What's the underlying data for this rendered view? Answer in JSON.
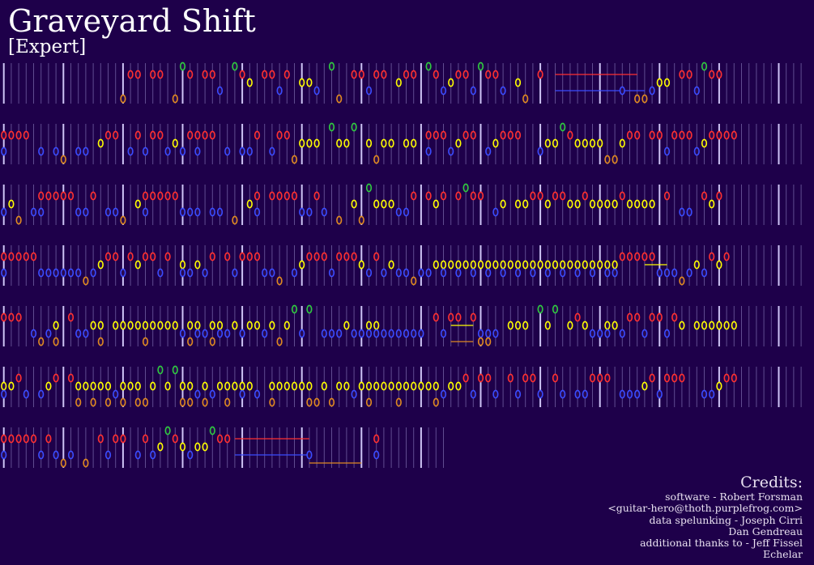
{
  "song": {
    "title": "Graveyard Shift",
    "difficulty": "[Expert]"
  },
  "credits": {
    "heading": "Credits:",
    "lines": [
      "software - Robert Forsman",
      "<guitar-hero@thoth.purplefrog.com>",
      "data spelunking - Joseph Cirri",
      "Dan Gendreau",
      "additional thanks to - Jeff Fissel",
      "Echelar"
    ]
  },
  "colors": {
    "background": "#1e004a",
    "green": "#2ecc40",
    "red": "#ff3030",
    "yellow": "#ffff00",
    "blue": "#3a4cff",
    "orange": "#e08a20",
    "beat_line": "#8c7fc0",
    "measure_line": "#d8d0ff"
  },
  "note_key": {
    "g": [
      "G"
    ],
    "r": [
      "R"
    ],
    "y": [
      "Y"
    ],
    "b": [
      "B"
    ],
    "o": [
      "O"
    ],
    "x": [
      "R",
      "B"
    ],
    "v": [
      "Y",
      "B"
    ],
    "w": [
      "Y",
      "O"
    ],
    "q": [
      "B",
      "O"
    ]
  },
  "rows": [
    {
      "notes": "................orr.rr.ogr.rrb.gry.rrbr.yyb.go.rrbrr.yrr.grbyrrbgrrb.yo.r..........b.oobyy.rrbgrr.",
      "length": 108
    },
    {
      "notes": "xrrr.b.bo.bb.yrr.brbrrbybrxrr.b.bbr.brroyyy.gyyg.yoyy.yy.xrrbyrr.byrrr..byygryyyyooyrr.rrbrrrbyrrrr",
      "length": 108
    },
    {
      "notes": "byo.bxrrrrbbr.bbo.yxrrrrbbb.bb.o.yx.rrrrbbrb.o.yogyyybbr.ryr.rgrr.by.yyrryrryyryyyyryyyy.r.bb.ryr.",
      "length": 108
    },
    {
      "notes": "xrrrrbbbbbbobyrrbryrrbr.vbybr.rbrrrbbo.byrrrbrrrybrbybbobbyvyvyvyvyvyvyvyvyvyvyvyvvrrrrrbbbobybryr",
      "length": 108
    },
    {
      "notes": "rrr.bobw.rbbyw.yyyywyyyybwvbwvbybyybyoygbg.bbbybbvvbbbbbb.rbrr.rqqb.yyy.gyg.yrybbvybrrbrrbry.yyyyyy",
      "length": 108
    },
    {
      "notes": "vyrb.byr.rwywywbwywoygygwwbwbywyvyb.wyyyywoyoyybywyyywyyyywbyyrbrrb.rbrrb.rb.bbrrr.bbbyrbrrr..bbyrr",
      "length": 108
    },
    {
      "notes": "xrrrrbrbob.o.rbrr.brbygrybyygrr..........b........x",
      "length": 60
    }
  ],
  "sustains": [
    {
      "row": 0,
      "lane": "R",
      "from_beat": 74,
      "to_beat": 85
    },
    {
      "row": 0,
      "lane": "B",
      "from_beat": 74,
      "to_beat": 86
    },
    {
      "row": 3,
      "lane": "Y",
      "from_beat": 86,
      "to_beat": 89
    },
    {
      "row": 4,
      "lane": "Y",
      "from_beat": 60,
      "to_beat": 63
    },
    {
      "row": 4,
      "lane": "O",
      "from_beat": 60,
      "to_beat": 63
    },
    {
      "row": 6,
      "lane": "R",
      "from_beat": 31,
      "to_beat": 41
    },
    {
      "row": 6,
      "lane": "B",
      "from_beat": 31,
      "to_beat": 41
    },
    {
      "row": 6,
      "lane": "O",
      "from_beat": 41,
      "to_beat": 48
    }
  ]
}
